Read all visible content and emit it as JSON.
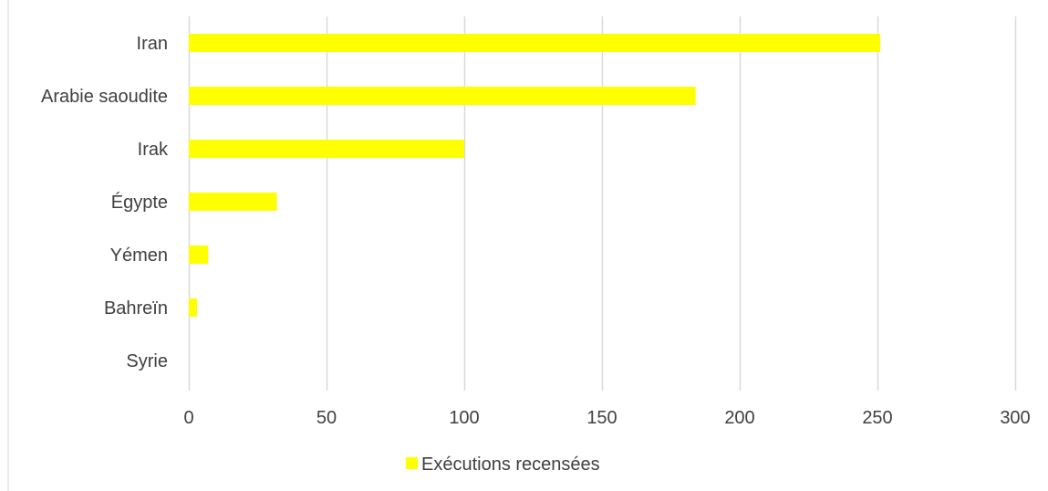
{
  "chart_data": {
    "type": "bar",
    "orientation": "horizontal",
    "categories": [
      "Iran",
      "Arabie saoudite",
      "Irak",
      "Égypte",
      "Yémen",
      "Bahreïn",
      "Syrie"
    ],
    "series": [
      {
        "name": "Exécutions recensées",
        "values": [
          251,
          184,
          100,
          32,
          7,
          3,
          0
        ],
        "color": "#FFFF00"
      }
    ],
    "xlim": [
      0,
      300
    ],
    "xticks": [
      0,
      50,
      100,
      150,
      200,
      250,
      300
    ],
    "grid": true,
    "legend": "bottom",
    "colors": {
      "grid": "#D9D9D9",
      "border": "#D9D9D9",
      "text": "#404040"
    }
  }
}
